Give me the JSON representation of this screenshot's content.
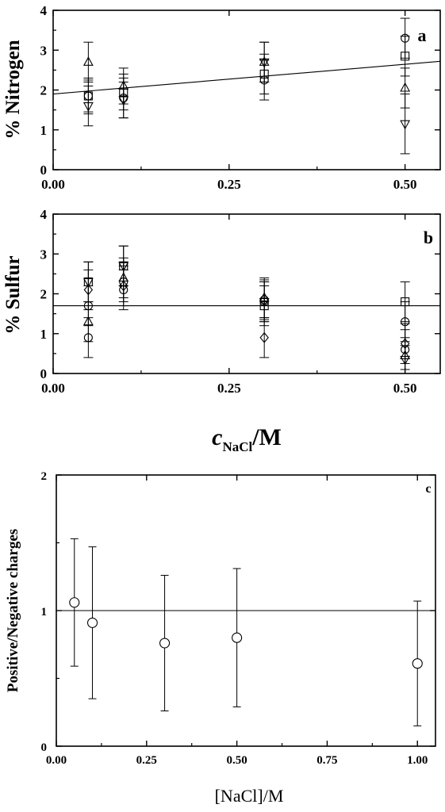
{
  "chart_data": [
    {
      "id": "a",
      "type": "scatter",
      "panel_label": "a",
      "ylabel": "% Nitrogen",
      "xlim": [
        0,
        0.55
      ],
      "ylim": [
        0,
        4
      ],
      "xticks": [
        "0.00",
        "0.25",
        "0.50"
      ],
      "yticks": [
        "0",
        "1",
        "2",
        "3",
        "4"
      ],
      "fit_line": {
        "x": [
          0,
          0.55
        ],
        "y": [
          1.9,
          2.72
        ]
      },
      "series": [
        {
          "marker": "circle",
          "points": [
            {
              "x": 0.05,
              "y": 1.85,
              "err": 0.4
            },
            {
              "x": 0.1,
              "y": 1.8,
              "err": 0.5
            },
            {
              "x": 0.3,
              "y": 2.25,
              "err": 0.5
            },
            {
              "x": 0.5,
              "y": 3.3,
              "err": 0.5
            }
          ]
        },
        {
          "marker": "square",
          "points": [
            {
              "x": 0.05,
              "y": 1.85,
              "err": 0.45
            },
            {
              "x": 0.1,
              "y": 1.95,
              "err": 0.45
            },
            {
              "x": 0.3,
              "y": 2.4,
              "err": 0.5
            },
            {
              "x": 0.5,
              "y": 2.85,
              "err": 0.5
            }
          ]
        },
        {
          "marker": "triangle-up",
          "points": [
            {
              "x": 0.05,
              "y": 2.7,
              "err": 0.5
            },
            {
              "x": 0.1,
              "y": 2.1,
              "err": 0.45
            },
            {
              "x": 0.3,
              "y": 2.7,
              "err": 0.5
            },
            {
              "x": 0.5,
              "y": 2.05,
              "err": 0.5
            }
          ]
        },
        {
          "marker": "triangle-down",
          "points": [
            {
              "x": 0.05,
              "y": 1.6,
              "err": 0.5
            },
            {
              "x": 0.1,
              "y": 1.75,
              "err": 0.45
            },
            {
              "x": 0.3,
              "y": 2.7,
              "err": 0.5
            },
            {
              "x": 0.5,
              "y": 1.15,
              "err": 0.75
            }
          ]
        }
      ]
    },
    {
      "id": "b",
      "type": "scatter",
      "panel_label": "b",
      "ylabel": "% Sulfur",
      "xlabel_main": "c",
      "xlabel_sub": "NaCl",
      "xlabel_tail": "/M",
      "xlim": [
        0,
        0.55
      ],
      "ylim": [
        0,
        4
      ],
      "xticks": [
        "0.00",
        "0.25",
        "0.50"
      ],
      "yticks": [
        "0",
        "1",
        "2",
        "3",
        "4"
      ],
      "fit_line": {
        "x": [
          0,
          0.55
        ],
        "y": [
          1.7,
          1.7
        ]
      },
      "series": [
        {
          "marker": "circle",
          "points": [
            {
              "x": 0.05,
              "y": 0.9,
              "err": 0.5
            },
            {
              "x": 0.1,
              "y": 2.3,
              "err": 0.5
            },
            {
              "x": 0.3,
              "y": 1.8,
              "err": 0.5
            },
            {
              "x": 0.5,
              "y": 1.3,
              "err": 0.5
            }
          ]
        },
        {
          "marker": "square",
          "points": [
            {
              "x": 0.05,
              "y": 2.3,
              "err": 0.5
            },
            {
              "x": 0.1,
              "y": 2.7,
              "err": 0.5
            },
            {
              "x": 0.3,
              "y": 1.7,
              "err": 0.5
            },
            {
              "x": 0.5,
              "y": 1.8,
              "err": 0.5
            }
          ]
        },
        {
          "marker": "triangle-up",
          "points": [
            {
              "x": 0.05,
              "y": 1.3,
              "err": 0.5
            },
            {
              "x": 0.1,
              "y": 2.4,
              "err": 0.5
            },
            {
              "x": 0.3,
              "y": 1.9,
              "err": 0.5
            },
            {
              "x": 0.5,
              "y": 0.45,
              "err": 0.45
            }
          ]
        },
        {
          "marker": "triangle-down",
          "points": [
            {
              "x": 0.05,
              "y": 2.3,
              "err": 0.5
            },
            {
              "x": 0.1,
              "y": 2.7,
              "err": 0.5
            },
            {
              "x": 0.3,
              "y": 1.8,
              "err": 0.5
            },
            {
              "x": 0.5,
              "y": 0.35,
              "err": 0.35
            }
          ]
        },
        {
          "marker": "diamond",
          "points": [
            {
              "x": 0.05,
              "y": 2.1,
              "err": 0.5
            },
            {
              "x": 0.1,
              "y": 2.2,
              "err": 0.5
            },
            {
              "x": 0.3,
              "y": 0.9,
              "err": 0.5
            },
            {
              "x": 0.5,
              "y": 0.75,
              "err": 0.5
            }
          ]
        },
        {
          "marker": "circle",
          "points": [
            {
              "x": 0.05,
              "y": 1.7,
              "err": 0.5
            },
            {
              "x": 0.1,
              "y": 2.1,
              "err": 0.5
            },
            {
              "x": 0.3,
              "y": 1.85,
              "err": 0.5
            },
            {
              "x": 0.5,
              "y": 0.6,
              "err": 0.5
            }
          ]
        }
      ]
    },
    {
      "id": "c",
      "type": "scatter",
      "panel_label": "c",
      "ylabel": "Positive/Negative charges",
      "xlabel": "[NaCl]/M",
      "xlim": [
        0,
        1.05
      ],
      "ylim": [
        0,
        2
      ],
      "xticks": [
        "0.00",
        "0.25",
        "0.50",
        "0.75",
        "1.00"
      ],
      "yticks": [
        "0",
        "1",
        "2"
      ],
      "ref_line": {
        "y": 1.0
      },
      "series": [
        {
          "marker": "circle",
          "points": [
            {
              "x": 0.05,
              "y": 1.06,
              "err": 0.47
            },
            {
              "x": 0.1,
              "y": 0.91,
              "err": 0.56
            },
            {
              "x": 0.3,
              "y": 0.76,
              "err": 0.5
            },
            {
              "x": 0.5,
              "y": 0.8,
              "err": 0.51
            },
            {
              "x": 1.0,
              "y": 0.61,
              "err": 0.46
            }
          ]
        }
      ]
    }
  ]
}
